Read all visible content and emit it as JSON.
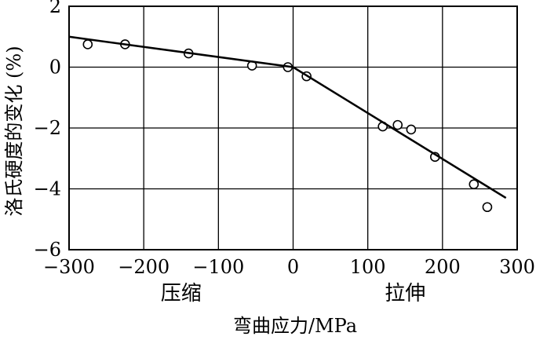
{
  "chart_data": {
    "type": "scatter",
    "title": "",
    "xlabel": "弯曲应力/MPa",
    "ylabel": "洛氏硬度的变化 (%)",
    "xlim": [
      -300,
      300
    ],
    "ylim": [
      -6,
      2
    ],
    "x_ticks": [
      -300,
      -200,
      -100,
      0,
      100,
      200,
      300
    ],
    "y_ticks": [
      -6,
      -4,
      -2,
      0,
      2
    ],
    "x_tick_labels": [
      "−300",
      "−200",
      "−100",
      "0",
      "100",
      "200",
      "300"
    ],
    "y_tick_labels": [
      "−6",
      "−4",
      "−2",
      "0",
      "2"
    ],
    "grid": true,
    "annotations": [
      {
        "text": "压缩",
        "x": -150
      },
      {
        "text": "拉伸",
        "x": 150
      }
    ],
    "series": [
      {
        "kind": "points",
        "marker": "open-circle",
        "points": [
          {
            "x": -275,
            "y": 0.75
          },
          {
            "x": -225,
            "y": 0.75
          },
          {
            "x": -140,
            "y": 0.45
          },
          {
            "x": -55,
            "y": 0.05
          },
          {
            "x": -7,
            "y": 0.0
          },
          {
            "x": 18,
            "y": -0.3
          },
          {
            "x": 120,
            "y": -1.95
          },
          {
            "x": 140,
            "y": -1.9
          },
          {
            "x": 158,
            "y": -2.05
          },
          {
            "x": 190,
            "y": -2.95
          },
          {
            "x": 242,
            "y": -3.85
          },
          {
            "x": 260,
            "y": -4.6
          }
        ]
      },
      {
        "kind": "line",
        "points": [
          {
            "x": -300,
            "y": 1.0
          },
          {
            "x": 0,
            "y": 0.0
          },
          {
            "x": 285,
            "y": -4.3
          }
        ]
      }
    ]
  }
}
